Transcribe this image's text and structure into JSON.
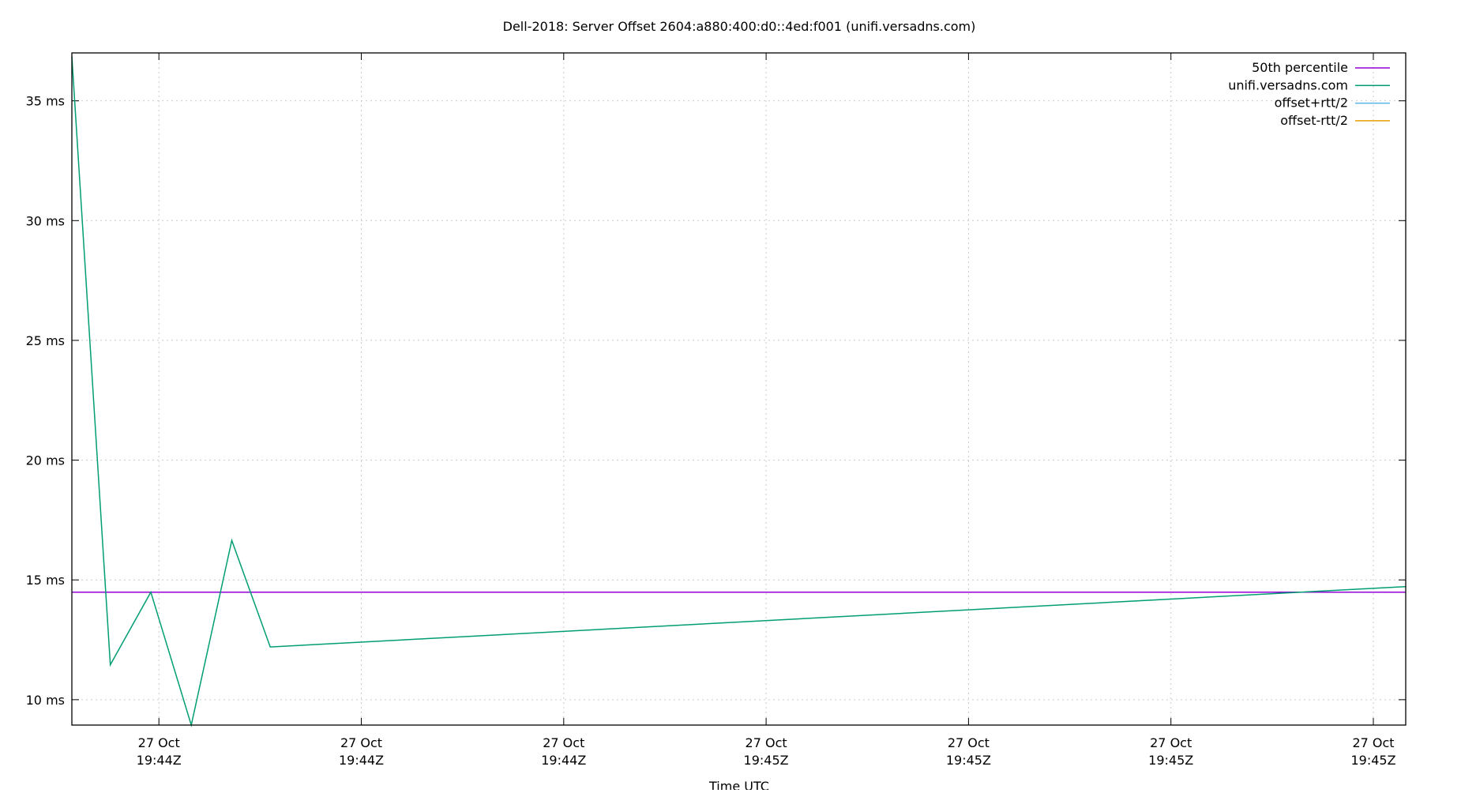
{
  "chart_data": {
    "type": "line",
    "title": "Dell-2018: Server Offset 2604:a880:400:d0::4ed:f001 (unifi.versadns.com)",
    "xlabel": "Time UTC",
    "ylabel": "",
    "xlim": [
      "19:44:25.7",
      "19:45:31.6"
    ],
    "ylim": [
      8.94,
      37.0
    ],
    "grid": true,
    "legend_position": "top-right",
    "x_ticks": [
      {
        "t": "19:44:30",
        "line1": "27 Oct",
        "line2": "19:44Z"
      },
      {
        "t": "19:44:40",
        "line1": "27 Oct",
        "line2": "19:44Z"
      },
      {
        "t": "19:44:50",
        "line1": "27 Oct",
        "line2": "19:44Z"
      },
      {
        "t": "19:45:00",
        "line1": "27 Oct",
        "line2": "19:45Z"
      },
      {
        "t": "19:45:10",
        "line1": "27 Oct",
        "line2": "19:45Z"
      },
      {
        "t": "19:45:20",
        "line1": "27 Oct",
        "line2": "19:45Z"
      },
      {
        "t": "19:45:30",
        "line1": "27 Oct",
        "line2": "19:45Z"
      }
    ],
    "y_ticks": [
      {
        "v": 10,
        "label": "10 ms"
      },
      {
        "v": 15,
        "label": "15 ms"
      },
      {
        "v": 20,
        "label": "20 ms"
      },
      {
        "v": 25,
        "label": "25 ms"
      },
      {
        "v": 30,
        "label": "30 ms"
      },
      {
        "v": 35,
        "label": "35 ms"
      }
    ],
    "series": [
      {
        "name": "50th percentile",
        "color": "#9400d3",
        "x": [
          "19:44:25.7",
          "19:45:31.6"
        ],
        "y": [
          14.49,
          14.49
        ]
      },
      {
        "name": "unifi.versadns.com",
        "color": "#009e73",
        "x": [
          "19:44:25.7",
          "19:44:27.6",
          "19:44:29.6",
          "19:44:31.6",
          "19:44:33.6",
          "19:44:35.5",
          "19:45:31.6"
        ],
        "y": [
          36.85,
          11.46,
          14.49,
          8.94,
          16.65,
          12.2,
          14.72
        ]
      },
      {
        "name": "offset+rtt/2",
        "color": "#56b4e9",
        "x": [],
        "y": []
      },
      {
        "name": "offset-rtt/2",
        "color": "#e69f00",
        "x": [],
        "y": []
      }
    ]
  }
}
